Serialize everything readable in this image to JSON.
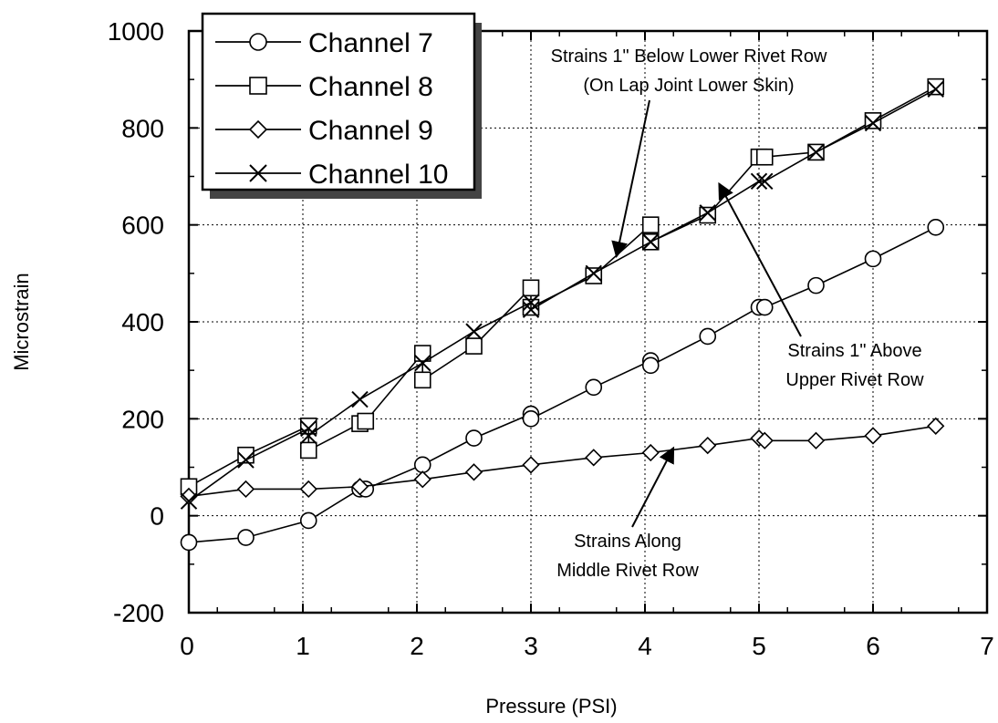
{
  "chart_data": {
    "type": "line",
    "xlabel": "Pressure  (PSI)",
    "ylabel": "Microstrain",
    "xlim": [
      0,
      7
    ],
    "ylim": [
      -200,
      1000
    ],
    "xticks": [
      0,
      1,
      2,
      3,
      4,
      5,
      6,
      7
    ],
    "yticks": [
      -200,
      0,
      200,
      400,
      600,
      800,
      1000
    ],
    "xtick_labels": [
      "0",
      "1",
      "2",
      "3",
      "4",
      "5",
      "6",
      "7"
    ],
    "ytick_labels": [
      "-200",
      "0",
      "200",
      "400",
      "600",
      "800",
      "1000"
    ],
    "grid": true,
    "legend_position": "top-left",
    "series": [
      {
        "name": "Channel 7",
        "marker": "circle",
        "x": [
          0,
          0.5,
          1.05,
          1.5,
          1.55,
          2.05,
          2.5,
          3.0,
          3.0,
          3.55,
          4.05,
          4.05,
          4.55,
          5.0,
          5.05,
          5.5,
          6.0,
          6.55
        ],
        "y": [
          -55,
          -45,
          -10,
          55,
          55,
          105,
          160,
          210,
          200,
          265,
          320,
          310,
          370,
          430,
          430,
          475,
          530,
          595
        ]
      },
      {
        "name": "Channel 8",
        "marker": "square",
        "x": [
          0,
          0.5,
          1.05,
          1.05,
          1.5,
          1.55,
          2.05,
          2.05,
          2.5,
          3.0,
          3.0,
          3.55,
          4.05,
          4.05,
          4.55,
          5.0,
          5.05,
          5.5,
          6.0,
          6.55
        ],
        "y": [
          60,
          125,
          185,
          135,
          190,
          195,
          335,
          280,
          350,
          470,
          430,
          495,
          600,
          565,
          620,
          740,
          740,
          750,
          815,
          885
        ]
      },
      {
        "name": "Channel 9",
        "marker": "diamond",
        "x": [
          0,
          0.5,
          1.05,
          1.5,
          2.05,
          2.5,
          3.0,
          3.55,
          4.05,
          4.55,
          5.0,
          5.05,
          5.5,
          6.0,
          6.55
        ],
        "y": [
          40,
          55,
          55,
          60,
          75,
          90,
          105,
          120,
          130,
          145,
          160,
          155,
          155,
          165,
          185
        ]
      },
      {
        "name": "Channel 10",
        "marker": "x",
        "x": [
          0,
          0.5,
          1.05,
          1.05,
          1.5,
          2.05,
          2.5,
          3.0,
          3.0,
          3.55,
          4.05,
          4.05,
          4.55,
          5.0,
          5.05,
          5.5,
          6.0,
          6.55
        ],
        "y": [
          30,
          115,
          180,
          165,
          240,
          315,
          380,
          440,
          425,
          500,
          565,
          565,
          625,
          690,
          690,
          750,
          810,
          880
        ]
      }
    ],
    "annotations": [
      {
        "id": "below",
        "lines": [
          "Strains 1\" Below Lower Rivet Row",
          "(On Lap Joint Lower Skin)"
        ],
        "arrow_to": [
          3.75,
          535
        ]
      },
      {
        "id": "above",
        "lines": [
          "Strains 1\" Above",
          "Upper Rivet Row"
        ],
        "arrow_to": [
          4.65,
          685
        ]
      },
      {
        "id": "middle",
        "lines": [
          "Strains Along",
          "Middle Rivet Row"
        ],
        "arrow_to": [
          4.25,
          140
        ]
      }
    ]
  }
}
